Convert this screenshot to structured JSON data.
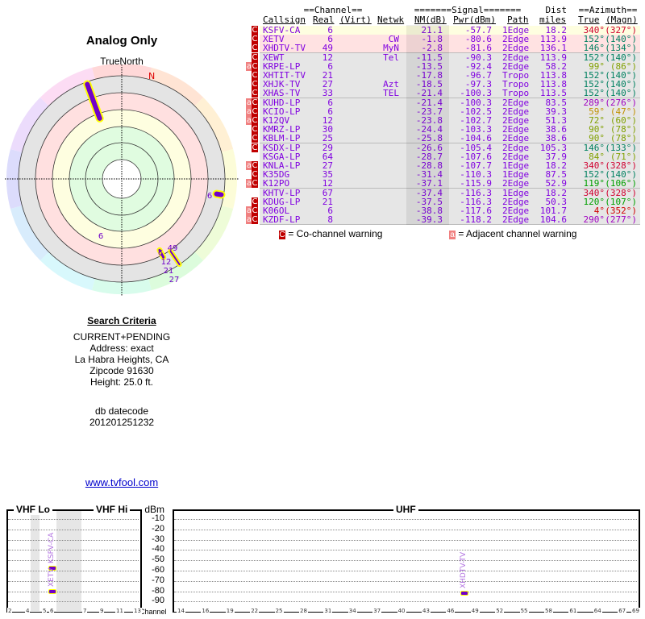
{
  "title": "Analog Only",
  "true_north": "TrueNorth",
  "north_label": "N",
  "criteria": {
    "heading": "Search Criteria",
    "lines": [
      "CURRENT+PENDING",
      "Address: exact",
      "La Habra Heights, CA",
      "Zipcode 91630",
      "Height: 25.0 ft."
    ],
    "db_label": "db datecode",
    "db_value": "201201251232"
  },
  "link": "www.tvfool.com",
  "table": {
    "group_headers": {
      "channel": "==Channel==",
      "signal": "=======Signal=======",
      "dist": "Dist",
      "azimuth": "==Azimuth=="
    },
    "headers": {
      "callsign": "Callsign",
      "real": "Real",
      "virt": "(Virt)",
      "netwk": "Netwk",
      "nm": "NM(dB)",
      "pwr": "Pwr(dBm)",
      "path": "Path",
      "dist": "miles",
      "true": "True",
      "magn": "(Magn)"
    },
    "rows": [
      {
        "a": false,
        "c": true,
        "call": "KSFV-CA",
        "real": "6",
        "net": "",
        "nm": "21.1",
        "pwr": "-57.7",
        "path": "1Edge",
        "dist": "18.2",
        "true": "340°",
        "magn": "(327°)",
        "az": "#d00030",
        "bg": "#fefee0"
      },
      {
        "a": false,
        "c": true,
        "call": "XETV",
        "real": "6",
        "net": "CW",
        "nm": "-1.8",
        "pwr": "-80.6",
        "path": "2Edge",
        "dist": "113.9",
        "true": "152°",
        "magn": "(140°)",
        "az": "#008060",
        "bg": "#ffe2e2"
      },
      {
        "a": false,
        "c": true,
        "call": "XHDTV-TV",
        "real": "49",
        "net": "MyN",
        "nm": "-2.8",
        "pwr": "-81.6",
        "path": "2Edge",
        "dist": "136.1",
        "true": "146°",
        "magn": "(134°)",
        "az": "#008060",
        "bg": "#ffe2e2"
      },
      {
        "a": false,
        "c": true,
        "call": "XEWT",
        "real": "12",
        "net": "Tel",
        "nm": "-11.5",
        "pwr": "-90.3",
        "path": "2Edge",
        "dist": "113.9",
        "true": "152°",
        "magn": "(140°)",
        "az": "#008060",
        "bg": "#e6e6e6"
      },
      {
        "a": true,
        "c": true,
        "call": "KRPE-LP",
        "real": "6",
        "net": "",
        "nm": "-13.5",
        "pwr": "-92.4",
        "path": "2Edge",
        "dist": "58.2",
        "true": "99°",
        "magn": "(86°)",
        "az": "#80a000",
        "bg": "#e6e6e6"
      },
      {
        "a": false,
        "c": true,
        "call": "XHTIT-TV",
        "real": "21",
        "net": "",
        "nm": "-17.8",
        "pwr": "-96.7",
        "path": "Tropo",
        "dist": "113.8",
        "true": "152°",
        "magn": "(140°)",
        "az": "#008060",
        "bg": "#e6e6e6"
      },
      {
        "a": false,
        "c": true,
        "call": "XHJK-TV",
        "real": "27",
        "net": "Azt",
        "nm": "-18.5",
        "pwr": "-97.3",
        "path": "Tropo",
        "dist": "113.8",
        "true": "152°",
        "magn": "(140°)",
        "az": "#008060",
        "bg": "#e6e6e6"
      },
      {
        "a": false,
        "c": true,
        "call": "XHAS-TV",
        "real": "33",
        "net": "TEL",
        "nm": "-21.4",
        "pwr": "-100.3",
        "path": "Tropo",
        "dist": "113.5",
        "true": "152°",
        "magn": "(140°)",
        "az": "#008060",
        "bg": "#e6e6e6"
      },
      {
        "a": true,
        "c": true,
        "call": "KUHD-LP",
        "real": "6",
        "net": "",
        "nm": "-21.4",
        "pwr": "-100.3",
        "path": "2Edge",
        "dist": "83.5",
        "true": "289°",
        "magn": "(276°)",
        "az": "#a000c0",
        "bg": "#e6e6e6"
      },
      {
        "a": true,
        "c": true,
        "call": "KCIO-LP",
        "real": "6",
        "net": "",
        "nm": "-23.7",
        "pwr": "-102.5",
        "path": "2Edge",
        "dist": "39.3",
        "true": "59°",
        "magn": "(47°)",
        "az": "#c09000",
        "bg": "#e6e6e6"
      },
      {
        "a": true,
        "c": true,
        "call": "K12QV",
        "real": "12",
        "net": "",
        "nm": "-23.8",
        "pwr": "-102.7",
        "path": "2Edge",
        "dist": "51.3",
        "true": "72°",
        "magn": "(60°)",
        "az": "#80a000",
        "bg": "#e6e6e6"
      },
      {
        "a": false,
        "c": true,
        "call": "KMRZ-LP",
        "real": "30",
        "net": "",
        "nm": "-24.4",
        "pwr": "-103.3",
        "path": "2Edge",
        "dist": "38.6",
        "true": "90°",
        "magn": "(78°)",
        "az": "#80a000",
        "bg": "#e6e6e6"
      },
      {
        "a": false,
        "c": true,
        "call": "KBLM-LP",
        "real": "25",
        "net": "",
        "nm": "-25.8",
        "pwr": "-104.6",
        "path": "2Edge",
        "dist": "38.6",
        "true": "90°",
        "magn": "(78°)",
        "az": "#80a000",
        "bg": "#e6e6e6"
      },
      {
        "a": false,
        "c": true,
        "call": "KSDX-LP",
        "real": "29",
        "net": "",
        "nm": "-26.6",
        "pwr": "-105.4",
        "path": "2Edge",
        "dist": "105.3",
        "true": "146°",
        "magn": "(133°)",
        "az": "#008060",
        "bg": "#e6e6e6"
      },
      {
        "a": false,
        "c": false,
        "call": "KSGA-LP",
        "real": "64",
        "net": "",
        "nm": "-28.7",
        "pwr": "-107.6",
        "path": "2Edge",
        "dist": "37.9",
        "true": "84°",
        "magn": "(71°)",
        "az": "#80a000",
        "bg": "#e6e6e6"
      },
      {
        "a": true,
        "c": true,
        "call": "KNLA-LP",
        "real": "27",
        "net": "",
        "nm": "-28.8",
        "pwr": "-107.7",
        "path": "1Edge",
        "dist": "18.2",
        "true": "340°",
        "magn": "(328°)",
        "az": "#d00030",
        "bg": "#e6e6e6"
      },
      {
        "a": false,
        "c": true,
        "call": "K35DG",
        "real": "35",
        "net": "",
        "nm": "-31.4",
        "pwr": "-110.3",
        "path": "1Edge",
        "dist": "87.5",
        "true": "152°",
        "magn": "(140°)",
        "az": "#008060",
        "bg": "#e6e6e6"
      },
      {
        "a": true,
        "c": true,
        "call": "K12PO",
        "real": "12",
        "net": "",
        "nm": "-37.1",
        "pwr": "-115.9",
        "path": "2Edge",
        "dist": "52.9",
        "true": "119°",
        "magn": "(106°)",
        "az": "#00a000",
        "bg": "#e6e6e6"
      },
      {
        "a": false,
        "c": false,
        "call": "KHTV-LP",
        "real": "67",
        "net": "",
        "nm": "-37.4",
        "pwr": "-116.3",
        "path": "1Edge",
        "dist": "18.2",
        "true": "340°",
        "magn": "(328°)",
        "az": "#d00030",
        "bg": "#e6e6e6"
      },
      {
        "a": false,
        "c": true,
        "call": "KDUG-LP",
        "real": "21",
        "net": "",
        "nm": "-37.5",
        "pwr": "-116.3",
        "path": "2Edge",
        "dist": "50.3",
        "true": "120°",
        "magn": "(107°)",
        "az": "#00a000",
        "bg": "#e6e6e6"
      },
      {
        "a": true,
        "c": true,
        "call": "K06OL",
        "real": "6",
        "net": "",
        "nm": "-38.8",
        "pwr": "-117.6",
        "path": "2Edge",
        "dist": "101.7",
        "true": "4°",
        "magn": "(352°)",
        "az": "#d00000",
        "bg": "#e6e6e6"
      },
      {
        "a": true,
        "c": true,
        "call": "KZDF-LP",
        "real": "8",
        "net": "",
        "nm": "-39.3",
        "pwr": "-118.2",
        "path": "2Edge",
        "dist": "104.6",
        "true": "290°",
        "magn": "(277°)",
        "az": "#a000c0",
        "bg": "#e6e6e6"
      }
    ],
    "badge_c": "C",
    "badge_a": "a",
    "legend_c": "= Co-channel warning",
    "legend_a": "= Adjacent channel warning"
  },
  "polar_labels": [
    "6",
    "6",
    "49",
    "6",
    "12",
    "21",
    "27"
  ],
  "spectrum": {
    "vhf_lo": "VHF Lo",
    "vhf_hi": "VHF Hi",
    "uhf": "UHF",
    "dbm": "dBm",
    "channel": "Channel",
    "db_ticks": [
      "-10",
      "-20",
      "-30",
      "-40",
      "-50",
      "-60",
      "-70",
      "-80",
      "-90"
    ],
    "vhf_channels": [
      "2",
      "4",
      "5",
      "6",
      "7",
      "9",
      "11",
      "13"
    ],
    "uhf_channels": [
      "14",
      "16",
      "19",
      "22",
      "25",
      "28",
      "31",
      "34",
      "37",
      "40",
      "43",
      "46",
      "49",
      "52",
      "55",
      "58",
      "61",
      "64",
      "67",
      "69"
    ],
    "markers": [
      {
        "call": "KSFV-CA",
        "ch": 6,
        "dbm": -57.7
      },
      {
        "call": "XETV",
        "ch": 6,
        "dbm": -80.6
      },
      {
        "call": "XHDTV-TV",
        "ch": 49,
        "dbm": -81.6
      }
    ]
  }
}
